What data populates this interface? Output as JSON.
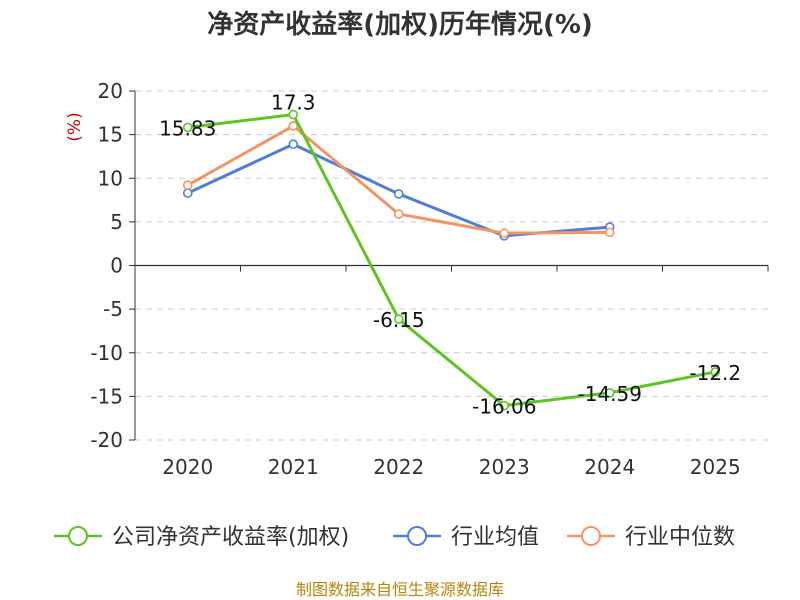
{
  "chart_data": {
    "type": "line",
    "title": "净资产收益率(加权)历年情况(%)",
    "ylabel": "(%)",
    "categories": [
      "2020",
      "2021",
      "2022",
      "2023",
      "2024",
      "2025"
    ],
    "ylim": [
      -20,
      20
    ],
    "yticks": [
      20,
      15,
      10,
      5,
      0,
      -5,
      -10,
      -15,
      -20
    ],
    "grid": true,
    "legend_position": "bottom",
    "series": [
      {
        "name": "公司净资产收益率(加权)",
        "color": "#5ec422",
        "values": [
          15.83,
          17.3,
          -6.15,
          -16.06,
          -14.59,
          -12.2
        ],
        "labels": [
          "15.83",
          "17.3",
          "-6.15",
          "-16.06",
          "-14.59",
          "-12.2"
        ]
      },
      {
        "name": "行业均值",
        "color": "#4f7fd6",
        "values": [
          8.3,
          13.9,
          8.2,
          3.4,
          4.4,
          null
        ]
      },
      {
        "name": "行业中位数",
        "color": "#f59463",
        "values": [
          9.2,
          16.0,
          5.9,
          3.7,
          3.8,
          null
        ]
      }
    ],
    "source": "制图数据来自恒生聚源数据库"
  }
}
